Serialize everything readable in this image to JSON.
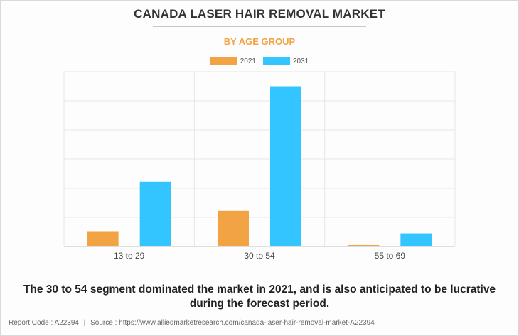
{
  "header": {
    "title": "CANADA LASER HAIR REMOVAL MARKET",
    "subtitle": "BY AGE GROUP"
  },
  "colors": {
    "subtitle": "#f2a444",
    "series_2021": "#f2a444",
    "series_2031": "#33c5ff",
    "grid": "#e6e6e6",
    "axis": "#bfbfbf"
  },
  "chart_data": {
    "type": "bar",
    "categories": [
      "13 to 29",
      "30 to 54",
      "55 to 69"
    ],
    "series": [
      {
        "name": "2021",
        "values": [
          10.5,
          24.5,
          1.0
        ]
      },
      {
        "name": "2031",
        "values": [
          44.5,
          110.0,
          9.0
        ]
      }
    ],
    "ylim": [
      0,
      120
    ],
    "y_tick_labels_shown": false,
    "grid": true,
    "legend_position": "top-center",
    "xlabel": "",
    "ylabel": ""
  },
  "caption": "The 30 to 54 segment dominated the market in 2021, and is also anticipated to be lucrative during the forecast period.",
  "footer": {
    "report_code": "Report Code : A22394",
    "separator": "|",
    "source": "Source : https://www.alliedmarketresearch.com/canada-laser-hair-removal-market-A22394"
  }
}
